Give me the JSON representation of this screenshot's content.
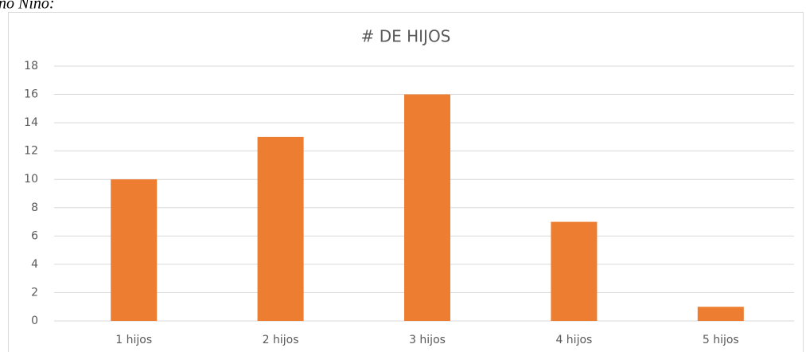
{
  "caption": "ño Niño:",
  "chart_data": {
    "type": "bar",
    "title": "# DE HIJOS",
    "categories": [
      "1 hijos",
      "2 hijos",
      "3 hijos",
      "4 hijos",
      "5 hijos"
    ],
    "values": [
      10,
      13,
      16,
      7,
      1
    ],
    "color": "#ed7d31",
    "ylim": [
      0,
      18
    ],
    "yticks": [
      0,
      2,
      4,
      6,
      8,
      10,
      12,
      14,
      16,
      18
    ],
    "grid": true
  }
}
